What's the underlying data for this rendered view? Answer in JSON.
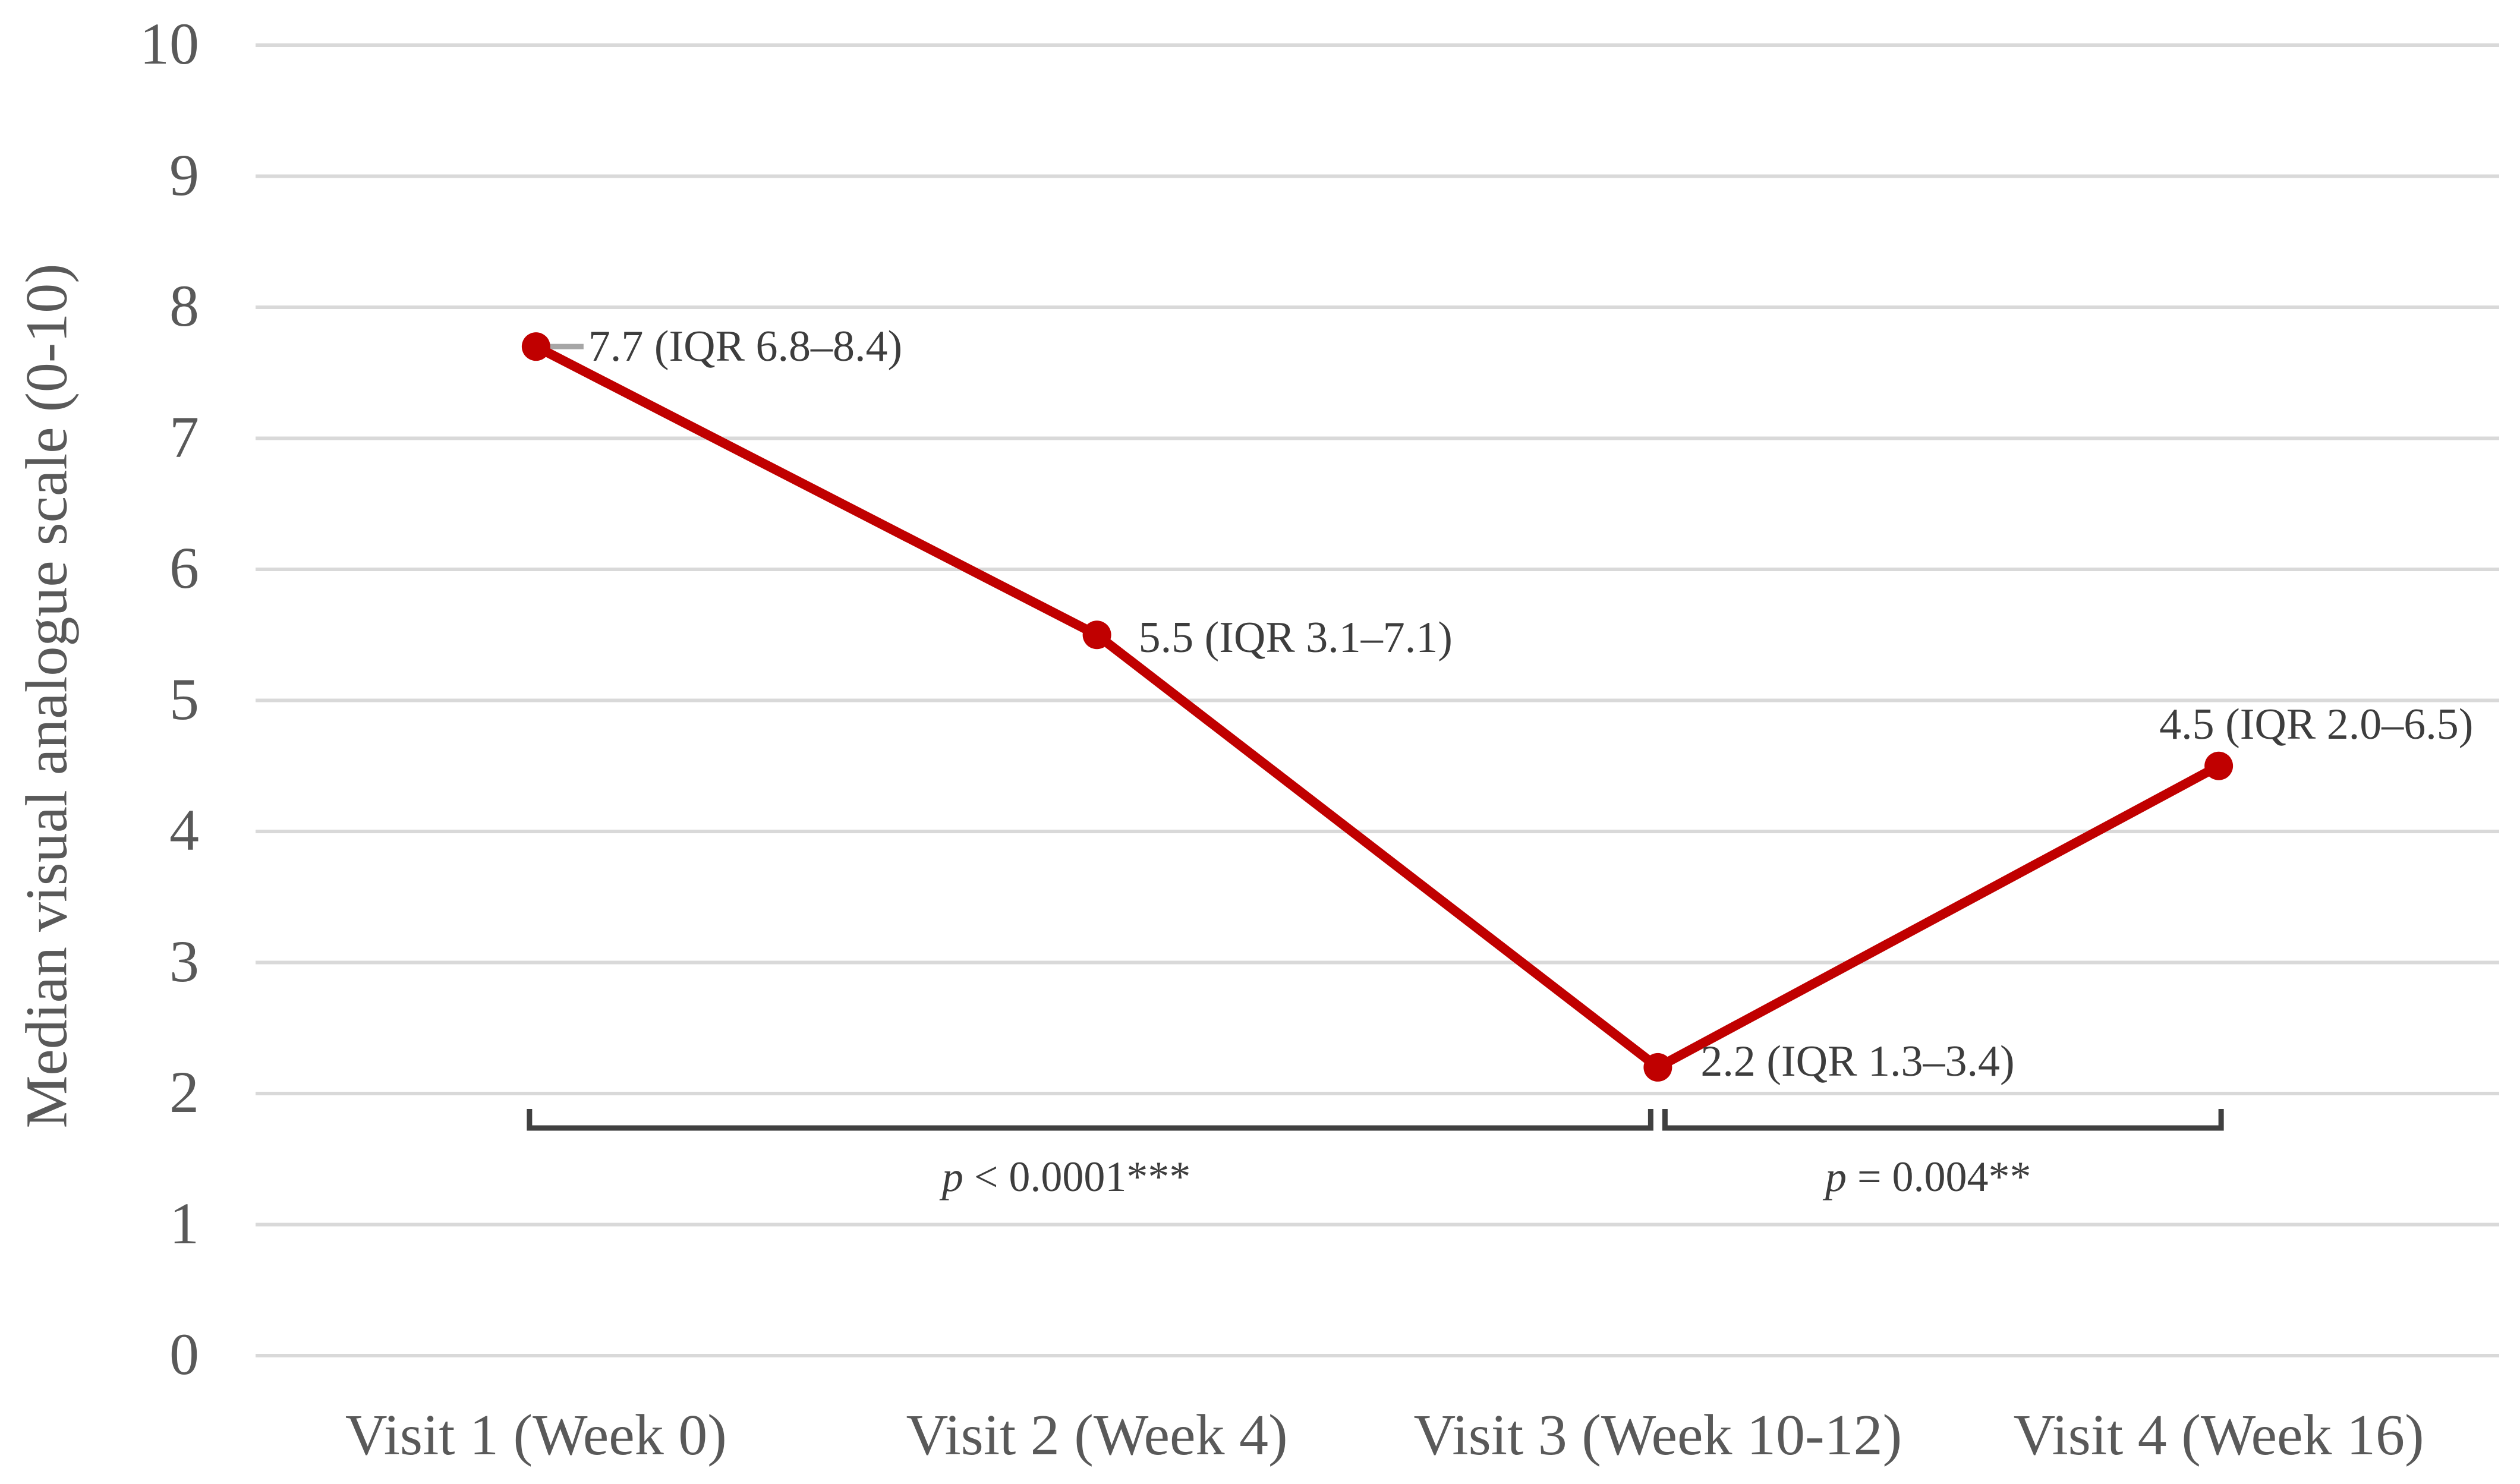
{
  "chart_data": {
    "type": "line",
    "title": "",
    "ylabel": "Median visual analogue scale (0-10)",
    "xlabel": "",
    "ylim": [
      0,
      10
    ],
    "yticks": [
      0,
      1,
      2,
      3,
      4,
      5,
      6,
      7,
      8,
      9,
      10
    ],
    "grid": true,
    "legend_position": "none",
    "categories": [
      "Visit 1 (Week 0)",
      "Visit 2 (Week 4)",
      "Visit 3 (Week 10-12)",
      "Visit 4 (Week 16)"
    ],
    "series": [
      {
        "name": "Median visual analogue scale",
        "values": [
          7.7,
          5.5,
          2.2,
          4.5
        ],
        "color": "#C00000"
      }
    ],
    "point_labels": [
      "7.7 (IQR 6.8–8.4)",
      "5.5 (IQR 3.1–7.1)",
      "2.2 (IQR 1.3–3.4)",
      "4.5 (IQR 2.0–6.5)"
    ],
    "annotations": [
      {
        "prefix": "p",
        "text": " < 0.0001***",
        "from": 0,
        "to": 2
      },
      {
        "prefix": "p",
        "text": " = 0.004**",
        "from": 2,
        "to": 3
      }
    ],
    "colors": {
      "line": "#C00000",
      "marker": "#C00000",
      "gridline": "#D9D9D9",
      "axis_text": "#595959",
      "label_text": "#3D3D3D",
      "bracket": "#404040",
      "leader_line": "#A6A6A6"
    }
  }
}
